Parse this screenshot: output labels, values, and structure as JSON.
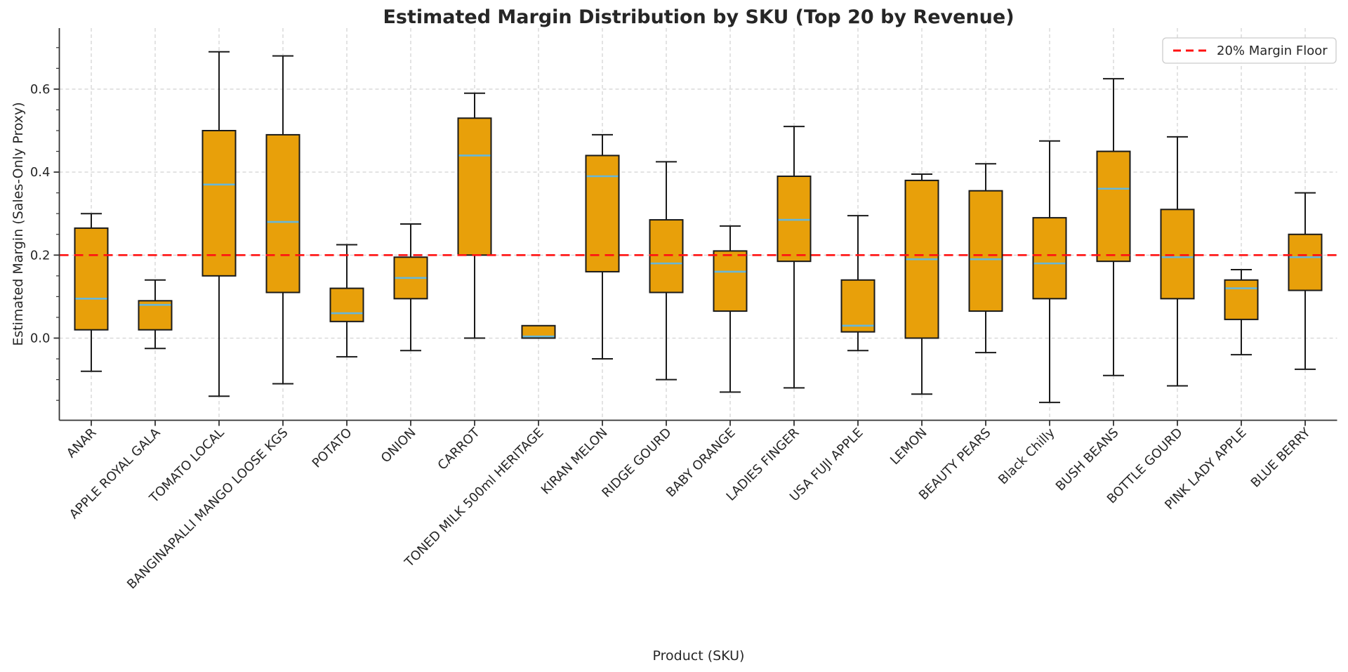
{
  "title": "Estimated Margin Distribution by SKU (Top 20 by Revenue)",
  "axes": {
    "x_label": "Product (SKU)",
    "y_label": "Estimated Margin (Sales-Only Proxy)",
    "y_ticks": [
      0.0,
      0.2,
      0.4,
      0.6
    ],
    "y_tick_labels": [
      "0.0",
      "0.2",
      "0.4",
      "0.6"
    ],
    "ylim": [
      -0.198,
      0.747
    ],
    "grid": "dashed-both-axes"
  },
  "legend": {
    "label": "20% Margin Floor",
    "position": "upper-right",
    "sample_style": "red-dashed-line"
  },
  "reference_line": {
    "value": 0.2,
    "label": "20% Margin Floor",
    "style": "dashed"
  },
  "colors": {
    "box_fill": "#e8a00a",
    "box_edge": "#1a1a1a",
    "median": "#67b7d9",
    "whisker": "#1a1a1a",
    "grid": "#cccccc",
    "spine": "#333333",
    "ref_line": "#ff1111",
    "text": "#262626",
    "legend_border": "#cccccc"
  },
  "chart_data": {
    "type": "boxplot",
    "title": "Estimated Margin Distribution by SKU (Top 20 by Revenue)",
    "xlabel": "Product (SKU)",
    "ylabel": "Estimated Margin (Sales-Only Proxy)",
    "ylim": [
      -0.198,
      0.747
    ],
    "y_ticks": [
      0.0,
      0.2,
      0.4,
      0.6
    ],
    "reference_value": 0.2,
    "categories": [
      "ANAR",
      "APPLE ROYAL GALA",
      "TOMATO LOCAL",
      "BANGINAPALLI MANGO LOOSE KGS",
      "POTATO",
      "ONION",
      "CARROT",
      "TONED MILK 500ml HERITAGE",
      "KIRAN MELON",
      "RIDGE GOURD",
      "BABY ORANGE",
      "LADIES FINGER",
      "USA FUJI APPLE",
      "LEMON",
      "BEAUTY PEARS",
      "Black Chilly",
      "BUSH BEANS",
      "BOTTLE GOURD",
      "PINK LADY APPLE",
      "BLUE BERRY"
    ],
    "boxes": [
      {
        "label": "ANAR",
        "whislo": -0.08,
        "q1": 0.02,
        "med": 0.095,
        "q3": 0.265,
        "whishi": 0.3
      },
      {
        "label": "APPLE ROYAL GALA",
        "whislo": -0.025,
        "q1": 0.02,
        "med": 0.08,
        "q3": 0.09,
        "whishi": 0.14
      },
      {
        "label": "TOMATO LOCAL",
        "whislo": -0.14,
        "q1": 0.15,
        "med": 0.37,
        "q3": 0.5,
        "whishi": 0.69
      },
      {
        "label": "BANGINAPALLI MANGO LOOSE KGS",
        "whislo": -0.11,
        "q1": 0.11,
        "med": 0.28,
        "q3": 0.49,
        "whishi": 0.68
      },
      {
        "label": "POTATO",
        "whislo": -0.045,
        "q1": 0.04,
        "med": 0.06,
        "q3": 0.12,
        "whishi": 0.225
      },
      {
        "label": "ONION",
        "whislo": -0.03,
        "q1": 0.095,
        "med": 0.145,
        "q3": 0.195,
        "whishi": 0.275
      },
      {
        "label": "CARROT",
        "whislo": 0.0,
        "q1": 0.2,
        "med": 0.44,
        "q3": 0.53,
        "whishi": 0.59
      },
      {
        "label": "TONED MILK 500ml HERITAGE",
        "whislo": 0.0,
        "q1": 0.0,
        "med": 0.004,
        "q3": 0.03,
        "whishi": 0.03
      },
      {
        "label": "KIRAN MELON",
        "whislo": -0.05,
        "q1": 0.16,
        "med": 0.39,
        "q3": 0.44,
        "whishi": 0.49
      },
      {
        "label": "RIDGE GOURD",
        "whislo": -0.1,
        "q1": 0.11,
        "med": 0.18,
        "q3": 0.285,
        "whishi": 0.425
      },
      {
        "label": "BABY ORANGE",
        "whislo": -0.13,
        "q1": 0.065,
        "med": 0.16,
        "q3": 0.21,
        "whishi": 0.27
      },
      {
        "label": "LADIES FINGER",
        "whislo": -0.12,
        "q1": 0.185,
        "med": 0.285,
        "q3": 0.39,
        "whishi": 0.51
      },
      {
        "label": "USA FUJI APPLE",
        "whislo": -0.03,
        "q1": 0.015,
        "med": 0.03,
        "q3": 0.14,
        "whishi": 0.295
      },
      {
        "label": "LEMON",
        "whislo": -0.135,
        "q1": 0.0,
        "med": 0.19,
        "q3": 0.38,
        "whishi": 0.395
      },
      {
        "label": "BEAUTY PEARS",
        "whislo": -0.035,
        "q1": 0.065,
        "med": 0.19,
        "q3": 0.355,
        "whishi": 0.42
      },
      {
        "label": "Black Chilly",
        "whislo": -0.155,
        "q1": 0.095,
        "med": 0.18,
        "q3": 0.29,
        "whishi": 0.475
      },
      {
        "label": "BUSH BEANS",
        "whislo": -0.09,
        "q1": 0.185,
        "med": 0.36,
        "q3": 0.45,
        "whishi": 0.625
      },
      {
        "label": "BOTTLE GOURD",
        "whislo": -0.115,
        "q1": 0.095,
        "med": 0.195,
        "q3": 0.31,
        "whishi": 0.485
      },
      {
        "label": "PINK LADY APPLE",
        "whislo": -0.04,
        "q1": 0.045,
        "med": 0.12,
        "q3": 0.14,
        "whishi": 0.165
      },
      {
        "label": "BLUE BERRY",
        "whislo": -0.075,
        "q1": 0.115,
        "med": 0.195,
        "q3": 0.25,
        "whishi": 0.35
      }
    ],
    "legend_entries": [
      "20% Margin Floor"
    ],
    "legend_position": "upper-right"
  }
}
